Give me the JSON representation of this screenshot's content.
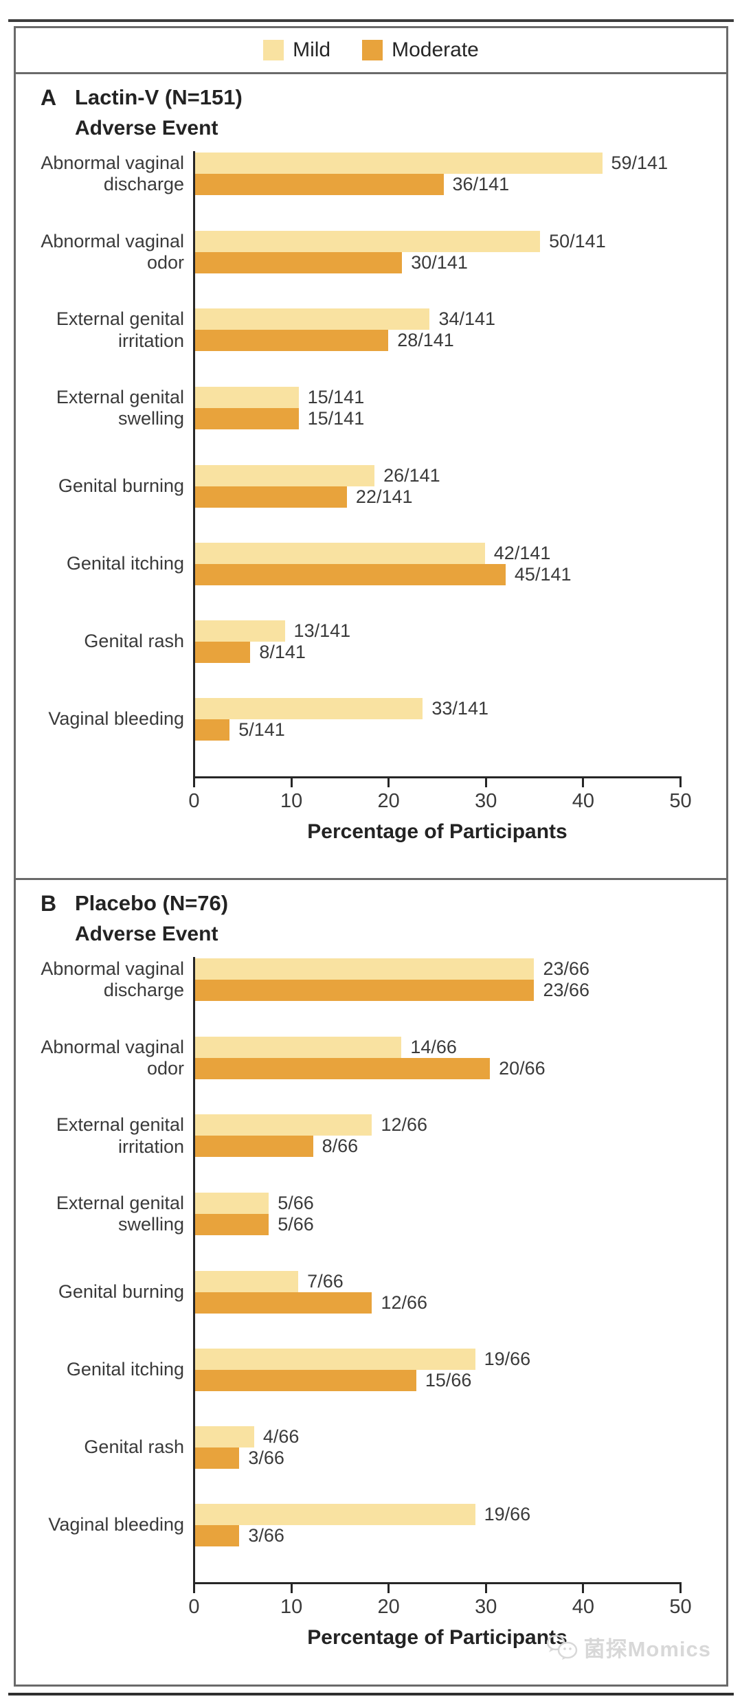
{
  "legend": {
    "items": [
      {
        "label": "Mild",
        "color": "#F9E2A1"
      },
      {
        "label": "Moderate",
        "color": "#E8A33C"
      }
    ]
  },
  "axis": {
    "ticks": [
      "0",
      "10",
      "20",
      "30",
      "40",
      "50"
    ],
    "max": 50,
    "title": "Percentage of Participants"
  },
  "watermark": {
    "text": "菌探Momics"
  },
  "chart_data": [
    {
      "type": "bar",
      "orientation": "horizontal",
      "panel_letter": "A",
      "title": "Lactin-V (N=151)",
      "subtitle": "Adverse Event",
      "denominator": 141,
      "xlabel": "Percentage of Participants",
      "xlim": [
        0,
        50
      ],
      "grid": false,
      "legend_position": "top",
      "categories": [
        "Abnormal vaginal discharge",
        "Abnormal vaginal odor",
        "External genital irritation",
        "External genital swelling",
        "Genital burning",
        "Genital itching",
        "Genital rash",
        "Vaginal bleeding"
      ],
      "series": [
        {
          "name": "Mild",
          "color": "#F9E2A1",
          "counts": [
            59,
            50,
            34,
            15,
            26,
            42,
            13,
            33
          ],
          "labels": [
            "59/141",
            "50/141",
            "34/141",
            "15/141",
            "26/141",
            "42/141",
            "13/141",
            "33/141"
          ]
        },
        {
          "name": "Moderate",
          "color": "#E8A33C",
          "counts": [
            36,
            30,
            28,
            15,
            22,
            45,
            8,
            5
          ],
          "labels": [
            "36/141",
            "30/141",
            "28/141",
            "15/141",
            "22/141",
            "45/141",
            "8/141",
            "5/141"
          ]
        }
      ]
    },
    {
      "type": "bar",
      "orientation": "horizontal",
      "panel_letter": "B",
      "title": "Placebo (N=76)",
      "subtitle": "Adverse Event",
      "denominator": 66,
      "xlabel": "Percentage of Participants",
      "xlim": [
        0,
        50
      ],
      "grid": false,
      "legend_position": "top",
      "categories": [
        "Abnormal vaginal discharge",
        "Abnormal vaginal odor",
        "External genital irritation",
        "External genital swelling",
        "Genital burning",
        "Genital itching",
        "Genital rash",
        "Vaginal bleeding"
      ],
      "series": [
        {
          "name": "Mild",
          "color": "#F9E2A1",
          "counts": [
            23,
            14,
            12,
            5,
            7,
            19,
            4,
            19
          ],
          "labels": [
            "23/66",
            "14/66",
            "12/66",
            "5/66",
            "7/66",
            "19/66",
            "4/66",
            "19/66"
          ]
        },
        {
          "name": "Moderate",
          "color": "#E8A33C",
          "counts": [
            23,
            20,
            8,
            5,
            12,
            15,
            3,
            3
          ],
          "labels": [
            "23/66",
            "20/66",
            "8/66",
            "5/66",
            "12/66",
            "15/66",
            "3/66",
            "3/66"
          ]
        }
      ]
    }
  ]
}
